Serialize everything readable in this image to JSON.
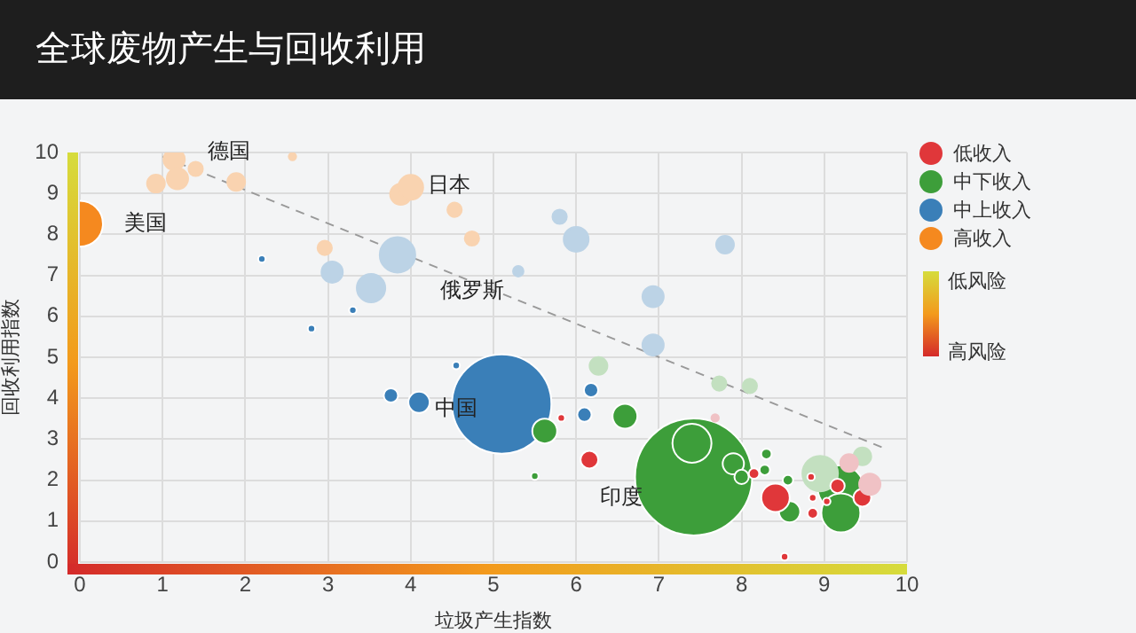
{
  "chart_data": {
    "type": "bubble",
    "title": "全球废物产生与回收利用",
    "xlabel": "垃圾产生指数",
    "ylabel": "回收利用指数",
    "xlim": [
      0,
      10
    ],
    "xticks": [
      0,
      1,
      2,
      3,
      4,
      5,
      6,
      7,
      8,
      9,
      10
    ],
    "ylim": [
      0,
      10
    ],
    "yticks": [
      0,
      1,
      2,
      3,
      4,
      5,
      6,
      7,
      8,
      9,
      10
    ],
    "grid": true,
    "legend": "top right",
    "marker": "circle",
    "relative": false,
    "annotations": [
      "美国",
      "德国",
      "日本",
      "俄罗斯",
      "中国",
      "印度",
      "低风险",
      "高风险"
    ],
    "series": [
      {
        "name": "低收入",
        "color": "#e0373a",
        "x": [
          6.16,
          8.41,
          9.16,
          9.46,
          8.86,
          8.86,
          8.15,
          8.52,
          8.84,
          5.82,
          9.03,
          7.68,
          9.3,
          9.55
        ],
        "values": [
          2.5,
          1.57,
          1.86,
          1.57,
          1.19,
          1.57,
          2.16,
          0.13,
          2.08,
          3.52,
          1.48,
          3.52,
          2.42,
          1.9
        ],
        "sizes": [
          0.023,
          0.059,
          0.015,
          0.023,
          0.008,
          0.004,
          0.008,
          0.004,
          0.004,
          0.004,
          0.004,
          0.004,
          0.023,
          0.033
        ],
        "colors": [
          "#e0373a",
          "#e0373a",
          "#e0373a",
          "#e0373a",
          "#e0373a",
          "#e0373a",
          "#e0373a",
          "#e0373a",
          "#e0373a",
          "#e0373a",
          "#e0373a",
          "#f0c2c5",
          "#f0c2c5",
          "#f0c2c5"
        ]
      },
      {
        "name": "中下收入",
        "color": "#3d9e3a",
        "x": [
          7.42,
          7.4,
          5.62,
          6.59,
          7.9,
          8.0,
          8.3,
          8.28,
          8.58,
          8.56,
          9.2,
          9.2,
          5.5,
          6.27,
          7.73,
          8.1,
          8.95,
          9.46
        ],
        "values": [
          2.08,
          2.9,
          3.2,
          3.56,
          2.4,
          2.08,
          2.64,
          2.25,
          1.23,
          2.0,
          1.8,
          1.2,
          2.1,
          4.79,
          4.36,
          4.3,
          2.16,
          2.58
        ],
        "sizes": [
          1,
          0.111,
          0.045,
          0.045,
          0.033,
          0.015,
          0.008,
          0.008,
          0.033,
          0.008,
          0.155,
          0.111,
          0.004,
          0.023,
          0.015,
          0.015,
          0.092,
          0.023
        ],
        "colors": [
          "#3d9e3a",
          "#3d9e3a",
          "#3d9e3a",
          "#3d9e3a",
          "#3d9e3a",
          "#3d9e3a",
          "#3d9e3a",
          "#3d9e3a",
          "#3d9e3a",
          "#3d9e3a",
          "#3d9e3a",
          "#3d9e3a",
          "#3d9e3a",
          "#c3e0c0",
          "#c3e0c0",
          "#c3e0c0",
          "#c3e0c0",
          "#c3e0c0"
        ]
      },
      {
        "name": "中上收入",
        "color": "#3a7fb8",
        "x": [
          5.1,
          3.76,
          4.1,
          6.18,
          6.1,
          2.2,
          2.8,
          3.3,
          4.55,
          3.84,
          3.05,
          3.52,
          6.0,
          5.8,
          7.8,
          6.93,
          6.93,
          5.3
        ],
        "values": [
          3.86,
          4.07,
          3.9,
          4.2,
          3.6,
          7.4,
          5.7,
          6.15,
          4.8,
          7.5,
          7.08,
          6.69,
          7.88,
          8.43,
          7.75,
          6.48,
          5.3,
          7.1
        ],
        "sizes": [
          0.72,
          0.015,
          0.033,
          0.015,
          0.015,
          0.004,
          0.004,
          0.004,
          0.004,
          0.092,
          0.033,
          0.059,
          0.045,
          0.015,
          0.023,
          0.033,
          0.033,
          0.008
        ],
        "colors": [
          "#3a7fb8",
          "#3a7fb8",
          "#3a7fb8",
          "#3a7fb8",
          "#3a7fb8",
          "#3a7fb8",
          "#3a7fb8",
          "#3a7fb8",
          "#3a7fb8",
          "#bcd3e6",
          "#bcd3e6",
          "#bcd3e6",
          "#bcd3e6",
          "#bcd3e6",
          "#bcd3e6",
          "#bcd3e6",
          "#bcd3e6",
          "#bcd3e6"
        ]
      },
      {
        "name": "高收入",
        "color": "#f5891f",
        "x": [
          0,
          1.14,
          1.18,
          0.92,
          1.89,
          3.88,
          4.0,
          4.53,
          2.96,
          4.74,
          2.57,
          1.4
        ],
        "values": [
          8.26,
          9.83,
          9.36,
          9.24,
          9.28,
          8.98,
          9.15,
          8.6,
          7.67,
          7.9,
          9.9,
          9.6
        ],
        "sizes": [
          0.155,
          0.033,
          0.033,
          0.023,
          0.023,
          0.033,
          0.045,
          0.015,
          0.015,
          0.015,
          0.004,
          0.015
        ],
        "colors": [
          "#f5891f",
          "#f9d3b0",
          "#f9d3b0",
          "#f9d3b0",
          "#f9d3b0",
          "#f9d3b0",
          "#f9d3b0",
          "#f9d3b0",
          "#f9d3b0",
          "#f9d3b0",
          "#f9d3b0",
          "#f9d3b0"
        ]
      },
      {
        "type": "line",
        "color": "#999999",
        "line_style": "dashed",
        "marker": "none",
        "x": [
          1,
          9.7
        ],
        "values": [
          9.9,
          2.8
        ]
      }
    ]
  }
}
